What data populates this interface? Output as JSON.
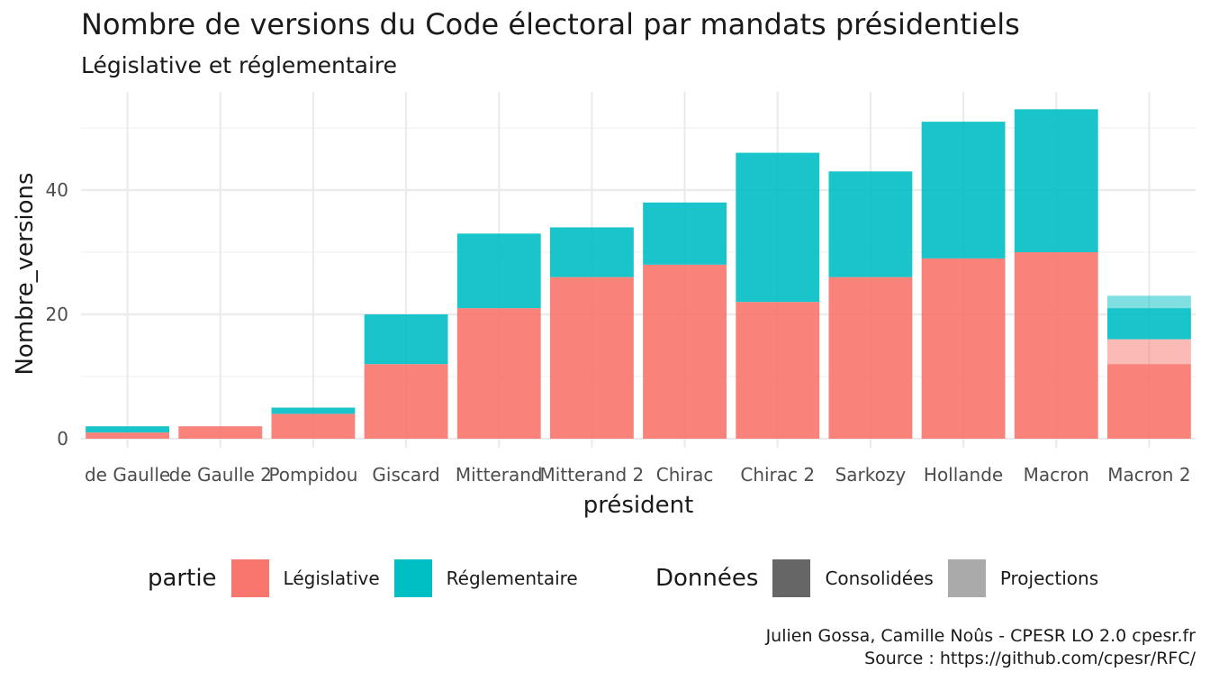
{
  "title": "Nombre de versions du Code électoral par mandats présidentiels",
  "subtitle": "Législative et réglementaire",
  "caption": {
    "line1": "Julien Gossa, Camille Noûs - CPESR LO 2.0 cpesr.fr",
    "line2": "Source : https://github.com/cpesr/RFC/"
  },
  "legend": {
    "partie_title": "partie",
    "partie_items": [
      {
        "label": "Législative",
        "color": "#F8766D"
      },
      {
        "label": "Réglementaire",
        "color": "#00BFC4"
      }
    ],
    "donnees_title": "Données",
    "donnees_items": [
      {
        "label": "Consolidées",
        "color": "#666666"
      },
      {
        "label": "Projections",
        "color": "#aaaaaa"
      }
    ]
  },
  "chart_data": {
    "type": "bar",
    "stacked": true,
    "xlabel": "président",
    "ylabel": "Nombre_versions",
    "ylim": [
      0,
      56
    ],
    "yticks": [
      0,
      20,
      40
    ],
    "grid": true,
    "legend_position": "bottom",
    "categories": [
      "de Gaulle",
      "de Gaulle 2",
      "Pompidou",
      "Giscard",
      "Mitterand",
      "Mitterand 2",
      "Chirac",
      "Chirac 2",
      "Sarkozy",
      "Hollande",
      "Macron",
      "Macron 2"
    ],
    "series": [
      {
        "name": "Législative",
        "donnees": "Consolidées",
        "color": "#F8766D",
        "values": [
          1,
          2,
          4,
          12,
          21,
          26,
          28,
          22,
          26,
          29,
          30,
          12
        ]
      },
      {
        "name": "Législative",
        "donnees": "Projections",
        "color": "#F8766D",
        "values": [
          0,
          0,
          0,
          0,
          0,
          0,
          0,
          0,
          0,
          0,
          0,
          4
        ]
      },
      {
        "name": "Réglementaire",
        "donnees": "Consolidées",
        "color": "#00BFC4",
        "values": [
          1,
          0,
          1,
          8,
          12,
          8,
          10,
          24,
          17,
          22,
          23,
          5
        ]
      },
      {
        "name": "Réglementaire",
        "donnees": "Projections",
        "color": "#00BFC4",
        "values": [
          0,
          0,
          0,
          0,
          0,
          0,
          0,
          0,
          0,
          0,
          0,
          2
        ]
      }
    ]
  }
}
